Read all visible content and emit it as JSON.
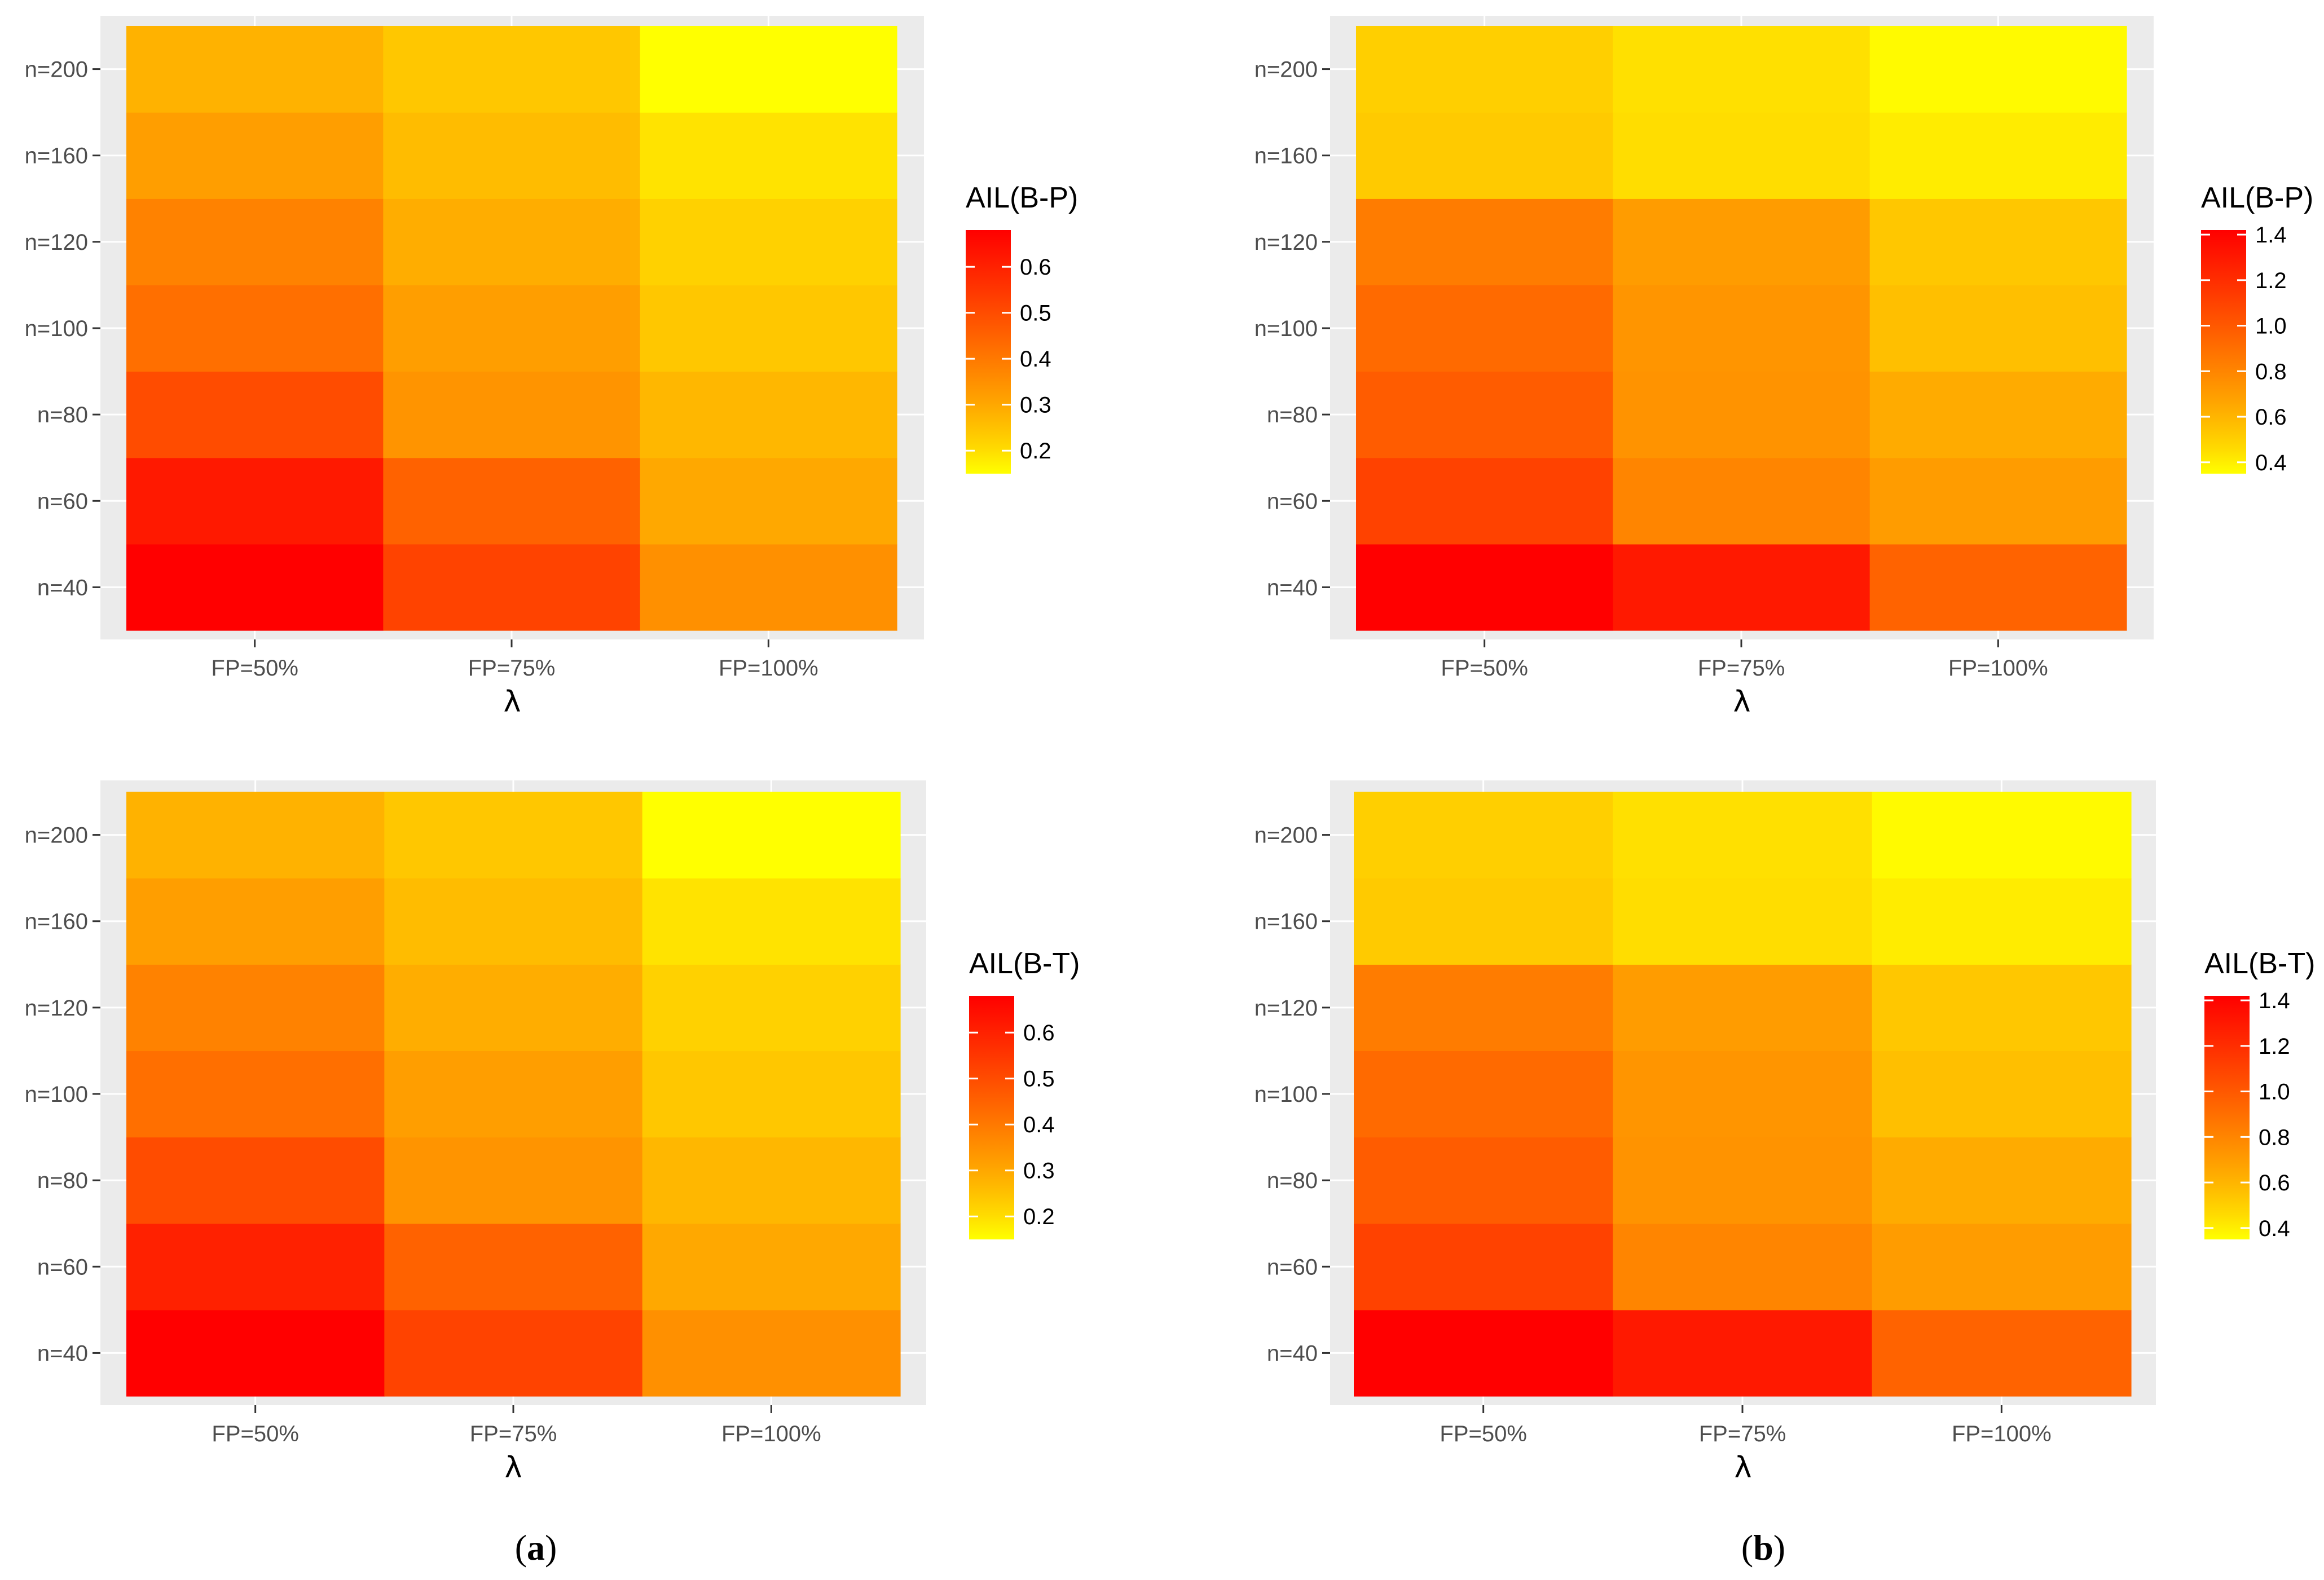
{
  "figure": {
    "captions": {
      "a": "a",
      "b": "b"
    }
  },
  "chart_data": [
    {
      "type": "heatmap",
      "panel": "a-top",
      "xlabel": "λ",
      "ylabel": "",
      "categories": [
        "FP=50%",
        "FP=75%",
        "FP=100%"
      ],
      "y_categories": [
        "n=40",
        "n=60",
        "n=80",
        "n=100",
        "n=120",
        "n=160",
        "n=200"
      ],
      "legend_title": "AIL(B-P)",
      "legend_ticks": [
        0.2,
        0.3,
        0.4,
        0.5,
        0.6
      ],
      "legend_ticklabels": [
        "0.2",
        "0.3",
        "0.4",
        "0.5",
        "0.6"
      ],
      "color_range": [
        0.15,
        0.68
      ],
      "color_low": "#FFFF00",
      "color_high": "#FF0000",
      "grid": true,
      "legend_position": "right",
      "values": [
        [
          0.68,
          0.52,
          0.35
        ],
        [
          0.62,
          0.45,
          0.3
        ],
        [
          0.5,
          0.34,
          0.27
        ],
        [
          0.42,
          0.32,
          0.24
        ],
        [
          0.38,
          0.29,
          0.22
        ],
        [
          0.32,
          0.26,
          0.19
        ],
        [
          0.28,
          0.24,
          0.15
        ]
      ]
    },
    {
      "type": "heatmap",
      "panel": "b-top",
      "xlabel": "λ",
      "ylabel": "",
      "categories": [
        "FP=50%",
        "FP=75%",
        "FP=100%"
      ],
      "y_categories": [
        "n=40",
        "n=60",
        "n=80",
        "n=100",
        "n=120",
        "n=160",
        "n=200"
      ],
      "legend_title": "AIL(B-P)",
      "legend_ticks": [
        0.4,
        0.6,
        0.8,
        1.0,
        1.2,
        1.4
      ],
      "legend_ticklabels": [
        "0.4",
        "0.6",
        "0.8",
        "1.0",
        "1.2",
        "1.4"
      ],
      "color_range": [
        0.35,
        1.42
      ],
      "color_low": "#FFFF00",
      "color_high": "#FF0000",
      "grid": true,
      "legend_position": "right",
      "values": [
        [
          1.42,
          1.3,
          0.95
        ],
        [
          1.1,
          0.8,
          0.7
        ],
        [
          0.98,
          0.74,
          0.64
        ],
        [
          0.92,
          0.73,
          0.56
        ],
        [
          0.84,
          0.7,
          0.53
        ],
        [
          0.52,
          0.45,
          0.4
        ],
        [
          0.5,
          0.44,
          0.36
        ]
      ]
    },
    {
      "type": "heatmap",
      "panel": "a-bottom",
      "xlabel": "λ",
      "ylabel": "",
      "categories": [
        "FP=50%",
        "FP=75%",
        "FP=100%"
      ],
      "y_categories": [
        "n=40",
        "n=60",
        "n=80",
        "n=100",
        "n=120",
        "n=160",
        "n=200"
      ],
      "legend_title": "AIL(B-T)",
      "legend_ticks": [
        0.2,
        0.3,
        0.4,
        0.5,
        0.6
      ],
      "legend_ticklabels": [
        "0.2",
        "0.3",
        "0.4",
        "0.5",
        "0.6"
      ],
      "color_range": [
        0.15,
        0.68
      ],
      "color_low": "#FFFF00",
      "color_high": "#FF0000",
      "grid": true,
      "legend_position": "right",
      "values": [
        [
          0.68,
          0.52,
          0.35
        ],
        [
          0.6,
          0.45,
          0.3
        ],
        [
          0.5,
          0.34,
          0.27
        ],
        [
          0.42,
          0.32,
          0.24
        ],
        [
          0.38,
          0.29,
          0.22
        ],
        [
          0.32,
          0.26,
          0.19
        ],
        [
          0.28,
          0.24,
          0.15
        ]
      ]
    },
    {
      "type": "heatmap",
      "panel": "b-bottom",
      "xlabel": "λ",
      "ylabel": "",
      "categories": [
        "FP=50%",
        "FP=75%",
        "FP=100%"
      ],
      "y_categories": [
        "n=40",
        "n=60",
        "n=80",
        "n=100",
        "n=120",
        "n=160",
        "n=200"
      ],
      "legend_title": "AIL(B-T)",
      "legend_ticks": [
        0.4,
        0.6,
        0.8,
        1.0,
        1.2,
        1.4
      ],
      "legend_ticklabels": [
        "0.4",
        "0.6",
        "0.8",
        "1.0",
        "1.2",
        "1.4"
      ],
      "color_range": [
        0.35,
        1.42
      ],
      "color_low": "#FFFF00",
      "color_high": "#FF0000",
      "grid": true,
      "legend_position": "right",
      "values": [
        [
          1.42,
          1.3,
          0.95
        ],
        [
          1.1,
          0.8,
          0.7
        ],
        [
          0.98,
          0.74,
          0.64
        ],
        [
          0.92,
          0.73,
          0.56
        ],
        [
          0.84,
          0.7,
          0.53
        ],
        [
          0.52,
          0.45,
          0.4
        ],
        [
          0.5,
          0.44,
          0.36
        ]
      ]
    }
  ]
}
